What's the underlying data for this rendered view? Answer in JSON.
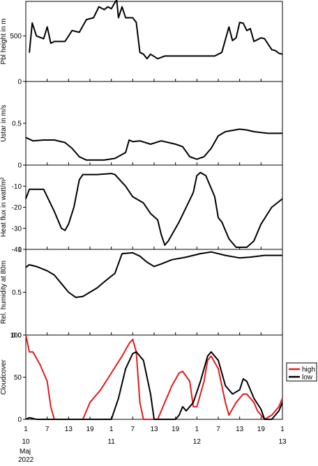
{
  "chart_data": [
    {
      "type": "line",
      "ylabel": "Pbl height in m",
      "xlim": [
        0,
        72
      ],
      "ylim": [
        0,
        880
      ],
      "yticks": [
        0,
        500
      ],
      "series": [
        {
          "color": "#000000",
          "x": [
            1,
            1.8,
            3,
            5,
            6,
            7,
            8,
            11,
            13,
            15,
            17,
            19,
            20.5,
            22,
            23,
            24,
            25.5,
            26,
            27,
            28,
            30,
            31,
            32,
            33,
            34,
            35,
            37,
            39,
            53,
            55,
            57,
            58,
            59,
            60,
            61,
            62,
            63,
            64,
            66,
            67,
            69,
            70,
            71,
            72
          ],
          "values": [
            317,
            643,
            500,
            470,
            600,
            420,
            440,
            440,
            560,
            540,
            680,
            700,
            820,
            790,
            820,
            800,
            900,
            700,
            820,
            700,
            700,
            650,
            320,
            300,
            250,
            300,
            250,
            280,
            280,
            320,
            600,
            450,
            480,
            650,
            640,
            560,
            580,
            440,
            480,
            470,
            350,
            340,
            310,
            300
          ]
        }
      ]
    },
    {
      "type": "line",
      "ylabel": "Ustar in m/s",
      "xlim": [
        0,
        72
      ],
      "ylim": [
        0,
        1
      ],
      "yticks": [
        0,
        0.5
      ],
      "series": [
        {
          "color": "#000000",
          "x": [
            0,
            2,
            5,
            8,
            11,
            13,
            15,
            17,
            22,
            25,
            28,
            29,
            30,
            32,
            35,
            38,
            42,
            44,
            46,
            48,
            50,
            52,
            54,
            56,
            60,
            62,
            64,
            68,
            72
          ],
          "values": [
            0.33,
            0.29,
            0.3,
            0.3,
            0.27,
            0.2,
            0.1,
            0.06,
            0.06,
            0.08,
            0.15,
            0.3,
            0.28,
            0.29,
            0.25,
            0.29,
            0.25,
            0.22,
            0.1,
            0.07,
            0.1,
            0.2,
            0.35,
            0.4,
            0.43,
            0.42,
            0.4,
            0.38,
            0.38
          ]
        }
      ]
    },
    {
      "type": "line",
      "ylabel": "Heat flux in watt/m²",
      "xlim": [
        0,
        72
      ],
      "ylim": [
        -40,
        0
      ],
      "yticks": [
        -10,
        -20,
        -30,
        -40
      ],
      "series": [
        {
          "color": "#000000",
          "x": [
            0,
            1,
            5,
            6,
            8,
            10,
            11,
            12,
            13.5,
            15,
            16,
            20,
            24,
            25,
            28,
            30,
            33,
            35,
            37,
            38,
            39,
            40,
            43,
            45,
            47,
            48,
            49,
            50.5,
            53,
            54,
            55,
            57,
            59,
            62,
            64,
            66,
            69,
            72
          ],
          "values": [
            -16,
            -11.5,
            -11.5,
            -15,
            -22,
            -30,
            -31,
            -28,
            -20,
            -7,
            -4.5,
            -4.5,
            -4,
            -4.5,
            -10,
            -15,
            -18,
            -23,
            -26,
            -33,
            -38,
            -36,
            -27,
            -20,
            -13,
            -5,
            -3.5,
            -5,
            -15,
            -25,
            -27,
            -35,
            -39,
            -39,
            -36,
            -28,
            -20,
            -16
          ]
        }
      ]
    },
    {
      "type": "line",
      "ylabel": "Rel. humidity at 80m",
      "xlim": [
        0,
        72
      ],
      "ylim": [
        0,
        1
      ],
      "yticks": [
        {
          "value": 0,
          "label": "0.0"
        },
        0.5,
        1
      ],
      "series": [
        {
          "color": "#000000",
          "x": [
            0,
            1,
            3,
            6,
            8,
            10,
            12,
            14,
            16,
            18,
            20,
            22,
            25,
            27,
            30,
            32,
            34,
            36,
            38,
            41,
            45,
            49,
            52,
            56,
            60,
            63,
            67,
            72
          ],
          "values": [
            0.79,
            0.82,
            0.8,
            0.75,
            0.7,
            0.6,
            0.5,
            0.44,
            0.45,
            0.5,
            0.55,
            0.62,
            0.72,
            0.95,
            0.96,
            0.92,
            0.85,
            0.8,
            0.83,
            0.88,
            0.91,
            0.95,
            0.97,
            0.93,
            0.9,
            0.91,
            0.93,
            0.93
          ]
        }
      ]
    },
    {
      "type": "line",
      "ylabel": "Cloudcover",
      "xlim": [
        0,
        72
      ],
      "ylim": [
        0,
        100
      ],
      "yticks": [
        0,
        50,
        100
      ],
      "xticks": [
        {
          "value": 0,
          "label": "1"
        },
        {
          "value": 6,
          "label": "7"
        },
        {
          "value": 12,
          "label": "13"
        },
        {
          "value": 18,
          "label": "19"
        },
        {
          "value": 24,
          "label": "1"
        },
        {
          "value": 30,
          "label": "7"
        },
        {
          "value": 36,
          "label": "13"
        },
        {
          "value": 42,
          "label": "19"
        },
        {
          "value": 48,
          "label": "1"
        },
        {
          "value": 54,
          "label": "7"
        },
        {
          "value": 60,
          "label": "13"
        },
        {
          "value": 66,
          "label": "19"
        },
        {
          "value": 72,
          "label": "1"
        }
      ],
      "day_labels": [
        {
          "value": 0,
          "label": "10"
        },
        {
          "value": 24,
          "label": "11"
        },
        {
          "value": 48,
          "label": "12"
        },
        {
          "value": 72,
          "label": "13"
        }
      ],
      "month_label": "Maj",
      "year_label": "2022",
      "series": [
        {
          "name": "high",
          "color": "#e41a1c",
          "x": [
            0,
            1,
            2,
            4,
            6,
            7,
            8,
            16,
            18,
            21,
            24,
            27,
            29,
            30,
            31,
            32,
            33,
            37,
            39,
            41,
            43,
            44,
            46,
            47,
            48,
            50,
            51,
            52,
            54,
            56,
            57,
            59,
            61,
            62,
            64,
            65,
            67,
            69,
            71,
            72
          ],
          "values": [
            100,
            80,
            80,
            65,
            45,
            15,
            0,
            0,
            20,
            35,
            55,
            75,
            90,
            95,
            80,
            20,
            0,
            0,
            20,
            40,
            55,
            57,
            45,
            15,
            15,
            45,
            70,
            75,
            60,
            20,
            5,
            20,
            30,
            30,
            20,
            10,
            0,
            5,
            15,
            25
          ]
        },
        {
          "name": "low",
          "color": "#000000",
          "x": [
            0,
            1,
            3,
            24,
            26,
            28,
            30,
            31,
            33,
            35,
            36,
            42,
            43,
            44,
            45,
            47,
            49,
            51,
            52,
            54,
            56,
            58,
            60,
            61,
            62,
            64,
            66,
            67,
            69,
            71,
            72
          ],
          "values": [
            0,
            2,
            0,
            0,
            25,
            60,
            78,
            80,
            70,
            30,
            0,
            0,
            5,
            15,
            10,
            20,
            45,
            75,
            80,
            70,
            40,
            30,
            35,
            48,
            45,
            25,
            12,
            0,
            0,
            10,
            20
          ]
        }
      ]
    }
  ]
}
